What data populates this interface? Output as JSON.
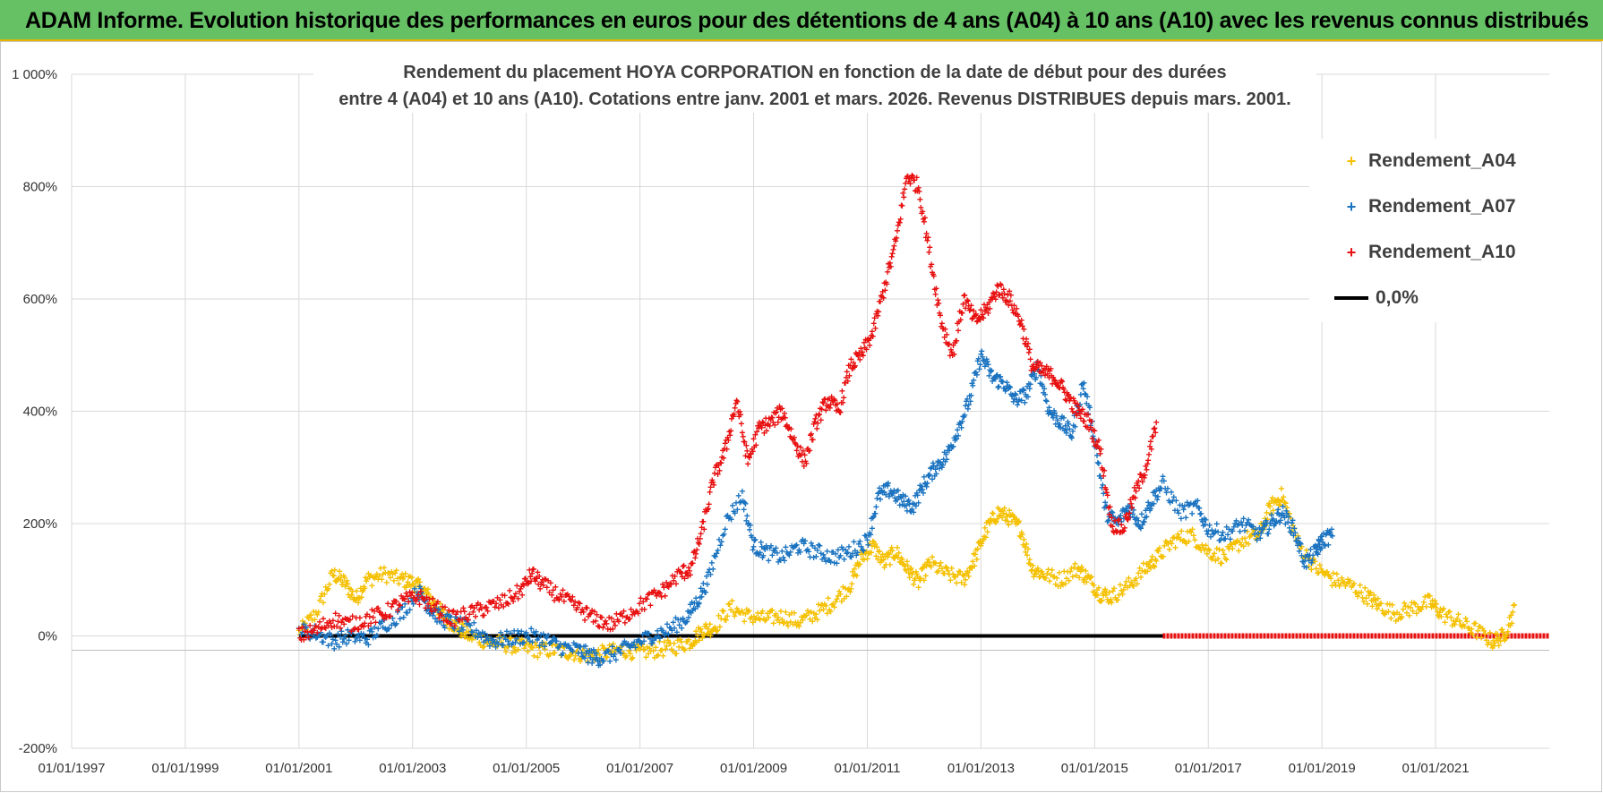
{
  "header": {
    "banner": "ADAM Informe. Evolution historique des performances en euros pour des détentions de 4 ans (A04) à 10 ans (A10) avec les revenus connus distribués"
  },
  "chart_data": {
    "type": "scatter",
    "title_line1": "Rendement du placement HOYA CORPORATION en fonction de la date de début pour des durées",
    "title_line2": "entre 4 (A04) et 10 ans (A10). Cotations entre janv. 2001 et mars. 2026. Revenus DISTRIBUES depuis mars. 2001.",
    "xlim": [
      1997.0,
      2023.0
    ],
    "ylim": [
      -200,
      1000
    ],
    "y_ticks": [
      -200,
      0,
      200,
      400,
      600,
      800,
      1000
    ],
    "y_tick_labels": [
      "-200%",
      "0%",
      "200%",
      "400%",
      "600%",
      "800%",
      "1 000%"
    ],
    "x_ticks": [
      1997,
      1999,
      2001,
      2003,
      2005,
      2007,
      2009,
      2011,
      2013,
      2015,
      2017,
      2019,
      2021
    ],
    "x_tick_labels": [
      "01/01/1997",
      "01/01/1999",
      "01/01/2001",
      "01/01/2003",
      "01/01/2005",
      "01/01/2007",
      "01/01/2009",
      "01/01/2011",
      "01/01/2013",
      "01/01/2015",
      "01/01/2017",
      "01/01/2019",
      "01/01/2021"
    ],
    "grid": true,
    "legend_position": "top-right",
    "series": [
      {
        "name": "Rendement_A04",
        "color": "#f5c000",
        "x": [
          2001.0,
          2001.3,
          2001.6,
          2001.8,
          2002.0,
          2002.2,
          2002.5,
          2002.8,
          2003.0,
          2003.2,
          2003.4,
          2003.6,
          2003.8,
          2004.0,
          2004.3,
          2004.6,
          2004.9,
          2005.2,
          2005.5,
          2005.8,
          2006.1,
          2006.4,
          2006.7,
          2007.0,
          2007.3,
          2007.6,
          2007.9,
          2008.1,
          2008.3,
          2008.6,
          2008.9,
          2009.2,
          2009.5,
          2009.8,
          2010.1,
          2010.4,
          2010.7,
          2010.9,
          2011.1,
          2011.3,
          2011.5,
          2011.7,
          2011.9,
          2012.1,
          2012.4,
          2012.7,
          2012.9,
          2013.1,
          2013.3,
          2013.5,
          2013.7,
          2013.9,
          2014.1,
          2014.4,
          2014.7,
          2014.9,
          2015.1,
          2015.3,
          2015.6,
          2015.9,
          2016.1,
          2016.4,
          2016.7,
          2017.0,
          2017.3,
          2017.6,
          2017.9,
          2018.1,
          2018.3,
          2018.6,
          2018.9,
          2019.2,
          2019.5,
          2019.8,
          2020.0,
          2020.3,
          2020.6,
          2020.9,
          2021.1,
          2021.4,
          2021.7,
          2022.0,
          2022.2,
          2022.4
        ],
        "y": [
          5,
          40,
          110,
          95,
          65,
          100,
          110,
          100,
          95,
          80,
          55,
          30,
          15,
          0,
          -10,
          -15,
          -20,
          -25,
          -25,
          -30,
          -35,
          -30,
          -25,
          -30,
          -25,
          -20,
          -10,
          10,
          15,
          50,
          35,
          30,
          35,
          25,
          40,
          60,
          90,
          140,
          160,
          130,
          150,
          120,
          95,
          130,
          110,
          100,
          140,
          190,
          220,
          210,
          190,
          120,
          110,
          100,
          120,
          100,
          75,
          70,
          90,
          120,
          140,
          170,
          180,
          150,
          140,
          170,
          180,
          230,
          250,
          160,
          120,
          100,
          90,
          70,
          55,
          40,
          50,
          60,
          40,
          25,
          10,
          -10,
          0,
          50
        ]
      },
      {
        "name": "Rendement_A07",
        "color": "#1a73c0",
        "x": [
          2001.0,
          2001.3,
          2001.6,
          2001.9,
          2002.2,
          2002.5,
          2002.8,
          2003.1,
          2003.3,
          2003.5,
          2003.8,
          2004.1,
          2004.4,
          2004.7,
          2005.0,
          2005.3,
          2005.6,
          2005.9,
          2006.1,
          2006.3,
          2006.6,
          2006.9,
          2007.2,
          2007.5,
          2007.8,
          2008.0,
          2008.2,
          2008.5,
          2008.8,
          2009.0,
          2009.2,
          2009.5,
          2009.8,
          2010.1,
          2010.4,
          2010.7,
          2011.0,
          2011.2,
          2011.4,
          2011.6,
          2011.8,
          2012.0,
          2012.2,
          2012.4,
          2012.6,
          2012.8,
          2013.0,
          2013.2,
          2013.4,
          2013.6,
          2013.8,
          2014.0,
          2014.2,
          2014.4,
          2014.6,
          2014.8,
          2015.0,
          2015.2,
          2015.4,
          2015.6,
          2015.8,
          2016.0,
          2016.2,
          2016.5,
          2016.8,
          2017.0,
          2017.3,
          2017.6,
          2017.9,
          2018.1,
          2018.3,
          2018.5,
          2018.7,
          2018.9,
          2019.0,
          2019.2
        ],
        "y": [
          10,
          5,
          -10,
          0,
          -5,
          20,
          40,
          80,
          50,
          30,
          20,
          10,
          -10,
          -5,
          0,
          -5,
          -20,
          -25,
          -35,
          -40,
          -30,
          -15,
          0,
          10,
          30,
          60,
          100,
          200,
          250,
          160,
          150,
          140,
          160,
          150,
          140,
          150,
          170,
          250,
          260,
          240,
          230,
          270,
          300,
          320,
          370,
          420,
          500,
          460,
          450,
          420,
          430,
          480,
          400,
          380,
          360,
          450,
          350,
          220,
          200,
          230,
          200,
          240,
          270,
          220,
          230,
          190,
          180,
          200,
          180,
          200,
          220,
          190,
          130,
          150,
          170,
          180
        ]
      },
      {
        "name": "Rendement_A10",
        "color": "#e81010",
        "x": [
          2001.0,
          2001.3,
          2001.6,
          2001.9,
          2002.2,
          2002.5,
          2002.8,
          2003.1,
          2003.4,
          2003.7,
          2004.0,
          2004.3,
          2004.6,
          2004.9,
          2005.1,
          2005.3,
          2005.6,
          2005.9,
          2006.2,
          2006.5,
          2006.8,
          2007.1,
          2007.4,
          2007.7,
          2007.9,
          2008.1,
          2008.3,
          2008.5,
          2008.7,
          2008.9,
          2009.1,
          2009.3,
          2009.5,
          2009.7,
          2009.9,
          2010.1,
          2010.3,
          2010.5,
          2010.7,
          2010.9,
          2011.1,
          2011.3,
          2011.5,
          2011.7,
          2011.9,
          2012.1,
          2012.3,
          2012.5,
          2012.7,
          2012.9,
          2013.1,
          2013.3,
          2013.5,
          2013.7,
          2013.9,
          2014.1,
          2014.3,
          2014.5,
          2014.7,
          2014.9,
          2015.1,
          2015.3,
          2015.5,
          2015.7,
          2015.9,
          2016.1
        ],
        "y": [
          0,
          10,
          30,
          20,
          30,
          40,
          60,
          70,
          50,
          30,
          40,
          50,
          60,
          80,
          110,
          90,
          70,
          50,
          30,
          20,
          40,
          60,
          80,
          110,
          120,
          190,
          280,
          330,
          420,
          310,
          370,
          380,
          400,
          350,
          310,
          380,
          420,
          400,
          480,
          500,
          540,
          620,
          700,
          820,
          800,
          680,
          560,
          500,
          600,
          560,
          580,
          620,
          600,
          560,
          480,
          470,
          460,
          430,
          400,
          380,
          330,
          200,
          190,
          250,
          300,
          380
        ]
      }
    ],
    "zero_line": {
      "name": "0,0%",
      "color": "#000000",
      "x_start": 2001.0,
      "x_end": 2016.2
    },
    "red_baseline": {
      "x_start": 2016.2,
      "x_end": 2023.0,
      "y": 0
    }
  }
}
